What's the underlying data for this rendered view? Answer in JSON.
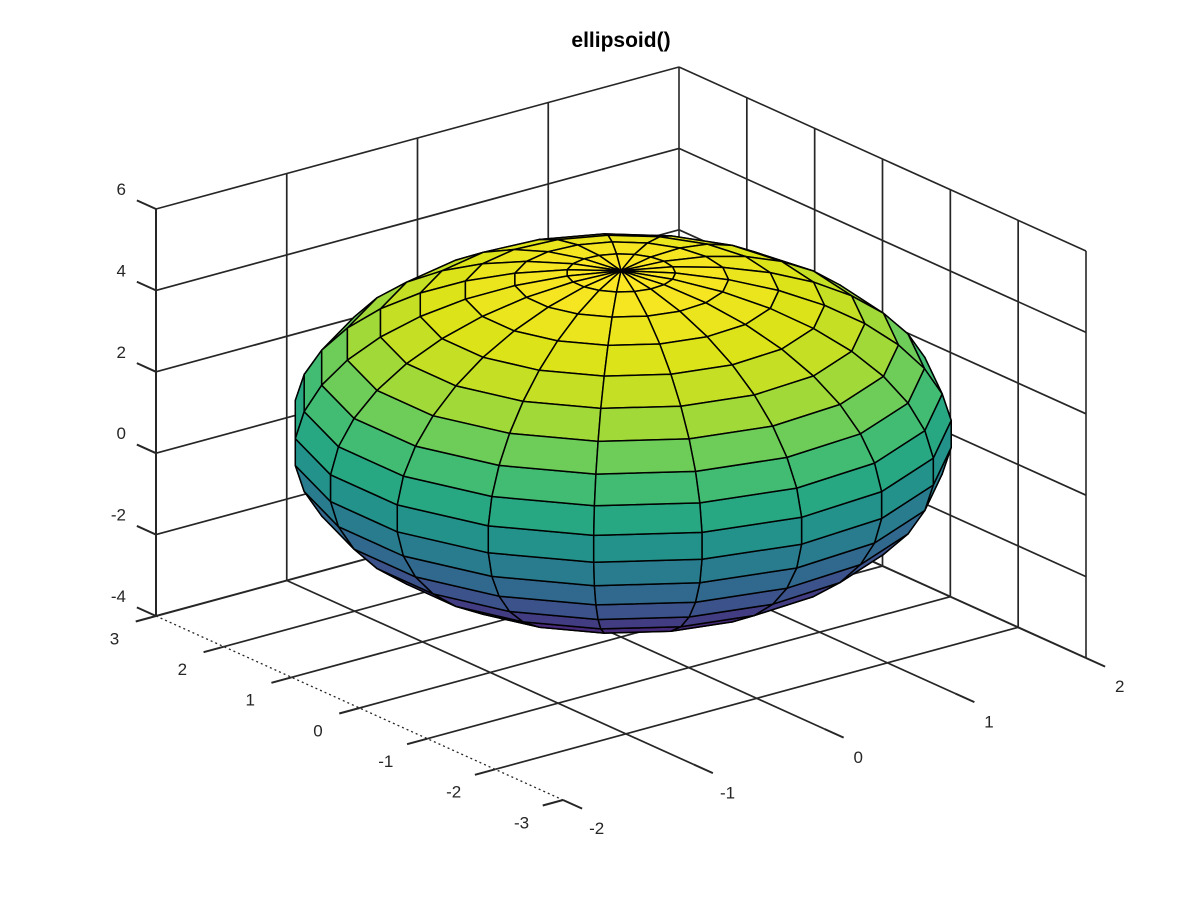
{
  "figure": {
    "title": "ellipsoid()"
  },
  "chart_data": {
    "type": "surface",
    "title": "ellipsoid()",
    "surface": {
      "kind": "ellipsoid",
      "center": [
        0,
        0,
        1
      ],
      "semi_axes": [
        2,
        3,
        4
      ],
      "mesh_divisions": 19,
      "colormap": "viridis",
      "clim": [
        -3,
        5
      ]
    },
    "view": {
      "azimuth": -37.5,
      "elevation": 30,
      "projection": "orthographic"
    },
    "grid": true,
    "axes": {
      "x": {
        "range": [
          -2,
          2
        ],
        "ticks": [
          -2,
          -1,
          0,
          1,
          2
        ],
        "tick_labels": [
          "-2",
          "-1",
          "0",
          "1",
          "2"
        ]
      },
      "y": {
        "range": [
          -3,
          3
        ],
        "ticks": [
          3,
          2,
          1,
          0,
          -1,
          -2,
          -3
        ],
        "tick_labels": [
          "3",
          "2",
          "1",
          "0",
          "-1",
          "-2",
          "-3"
        ]
      },
      "z": {
        "range": [
          -4,
          6
        ],
        "ticks": [
          -4,
          -2,
          0,
          2,
          4,
          6
        ],
        "tick_labels": [
          "-4",
          "-2",
          "0",
          "2",
          "4",
          "6"
        ]
      }
    }
  },
  "style": {
    "background": "#ffffff",
    "axis_color": "#262626",
    "label_color": "#262626",
    "title_color": "#000000",
    "mesh_line_color": "#000000",
    "viridis_stops": [
      [
        0.0,
        "#440154"
      ],
      [
        0.1,
        "#482878"
      ],
      [
        0.2,
        "#3e4a89"
      ],
      [
        0.3,
        "#31688e"
      ],
      [
        0.4,
        "#26828e"
      ],
      [
        0.5,
        "#1f9e89"
      ],
      [
        0.6,
        "#35b779"
      ],
      [
        0.7,
        "#6dcd59"
      ],
      [
        0.8,
        "#b4de2c"
      ],
      [
        0.9,
        "#dfe318"
      ],
      [
        1.0,
        "#fde725"
      ]
    ]
  }
}
